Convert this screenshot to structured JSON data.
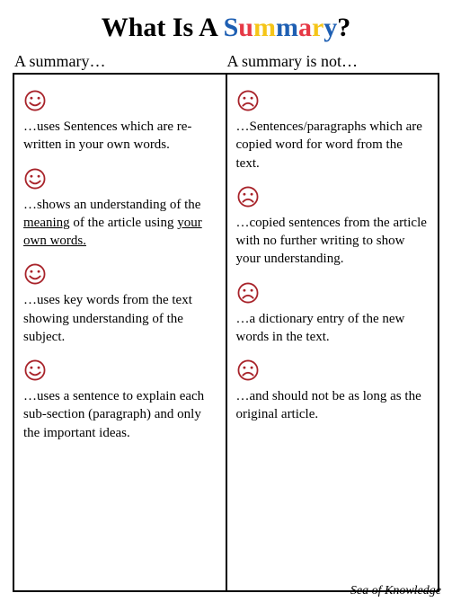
{
  "title": {
    "prefix": "What Is A ",
    "summary_word": "Summary",
    "suffix": "?",
    "letter_colors": [
      "#1e5fb3",
      "#e63946",
      "#f5c518",
      "#1e5fb3",
      "#e63946",
      "#f5c518",
      "#1e5fb3"
    ],
    "fontsize": 30
  },
  "headers": {
    "left": "A summary…",
    "right": "A summary is not…"
  },
  "icon_colors": {
    "smile": "#a8232a",
    "frown": "#a8232a"
  },
  "left_items": [
    {
      "icon": "smile",
      "text": "…uses Sentences which are re-written in your own words."
    },
    {
      "icon": "smile",
      "html": "…shows an understanding of the <span class=\"und\">meaning</span> of the article using <span class=\"und\">your own words.</span>"
    },
    {
      "icon": "smile",
      "text": "…uses key words from the text showing understanding of the subject."
    },
    {
      "icon": "smile",
      "text": "…uses a sentence to explain each sub-section (paragraph) and only the important ideas."
    }
  ],
  "right_items": [
    {
      "icon": "frown",
      "text": "…Sentences/paragraphs which are copied word for word from the text."
    },
    {
      "icon": "frown",
      "text": "…copied sentences from the article with no further writing to show your understanding."
    },
    {
      "icon": "frown",
      "text": "…a dictionary entry of the new words in the text."
    },
    {
      "icon": "frown",
      "text": "…and should not be as long as the original article."
    }
  ],
  "footer": "Sea of Knowledge",
  "body_font": "Comic Sans MS",
  "body_fontsize": 15,
  "background": "#ffffff",
  "border_color": "#000000"
}
